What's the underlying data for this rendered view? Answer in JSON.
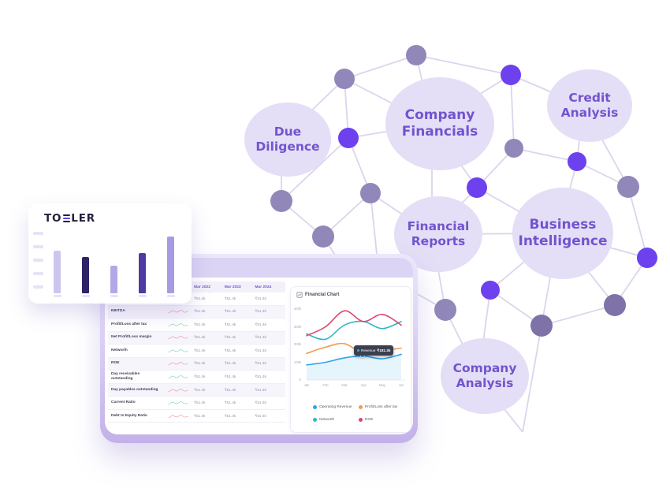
{
  "brand_card": {
    "logo_prefix": "TO",
    "logo_suffix": "LER"
  },
  "dashboard": {
    "table": {
      "columns": [
        "Mar 2022",
        "Mar 2023",
        "Mar 2024"
      ],
      "rows": [
        {
          "label": "Operating Revenue",
          "spark": "green",
          "values": [
            "₹51.4k",
            "₹51.4k",
            "₹51.4k"
          ]
        },
        {
          "label": "EBITDA",
          "spark": "red",
          "values": [
            "₹51.4k",
            "₹51.4k",
            "₹51.4k"
          ]
        },
        {
          "label": "Profit/Loss after tax",
          "spark": "green",
          "values": [
            "₹51.4k",
            "₹51.4k",
            "₹51.4k"
          ]
        },
        {
          "label": "Net Profit/Loss margin",
          "spark": "red",
          "values": [
            "₹51.4k",
            "₹51.4k",
            "₹51.4k"
          ]
        },
        {
          "label": "Networth",
          "spark": "green",
          "values": [
            "₹51.4k",
            "₹51.4k",
            "₹51.4k"
          ]
        },
        {
          "label": "ROE",
          "spark": "red",
          "values": [
            "₹51.4k",
            "₹51.4k",
            "₹51.4k"
          ]
        },
        {
          "label": "Day receivables outstanding",
          "spark": "green",
          "values": [
            "₹51.4k",
            "₹51.4k",
            "₹51.4k"
          ]
        },
        {
          "label": "Day payables outstanding",
          "spark": "red",
          "values": [
            "₹51.4k",
            "₹51.4k",
            "₹51.4k"
          ]
        },
        {
          "label": "Current Ratio",
          "spark": "green",
          "values": [
            "₹51.4k",
            "₹51.4k",
            "₹51.4k"
          ]
        },
        {
          "label": "Debt to Equity Ratio",
          "spark": "red",
          "values": [
            "₹51.4k",
            "₹51.4k",
            "₹51.4k"
          ]
        }
      ]
    },
    "chart_card": {
      "title": "Financial Chart",
      "y_ticks": [
        "400k",
        "300k",
        "200k",
        "100k",
        "0"
      ],
      "x_ticks": [
        "Jan",
        "Feb",
        "Mar",
        "Apr",
        "May",
        "Jun"
      ],
      "tooltip": {
        "label": "Revenue",
        "value": "₹181.3k"
      },
      "legend": [
        {
          "name": "Operating Revenue",
          "color": "#2ea3e8"
        },
        {
          "name": "Profit/Loss after tax",
          "color": "#f59a4d"
        },
        {
          "name": "Networth",
          "color": "#2fb7c5"
        },
        {
          "name": "ROE",
          "color": "#d9486e"
        }
      ]
    }
  },
  "network": {
    "labels": [
      {
        "text": "Due Diligence"
      },
      {
        "text": "Company Financials"
      },
      {
        "text": "Credit Analysis"
      },
      {
        "text": "Financial Reports"
      },
      {
        "text": "Business Intelligence"
      },
      {
        "text": "Company Analysis"
      }
    ],
    "colors": {
      "bubble_bg": "#e4def6",
      "bubble_text": "#7254cf",
      "node_violet": "#6d41ee",
      "node_muted": "#9187b9",
      "node_muted_dark": "#7e72a8",
      "edge": "#dbd5ec"
    }
  },
  "chart_data": [
    {
      "type": "line",
      "title": "Financial Chart",
      "x": [
        "Jan",
        "Feb",
        "Mar",
        "Apr",
        "May",
        "Jun"
      ],
      "ylim": [
        0,
        400
      ],
      "y_unit": "k",
      "legend_position": "bottom",
      "series": [
        {
          "name": "Operating Revenue",
          "color": "#2ea3e8",
          "area": true,
          "values": [
            85,
            100,
            125,
            135,
            120,
            145
          ]
        },
        {
          "name": "Profit/Loss after tax",
          "color": "#f59a4d",
          "area": false,
          "values": [
            150,
            185,
            205,
            150,
            165,
            180
          ]
        },
        {
          "name": "Networth",
          "color": "#2fb7c5",
          "area": false,
          "values": [
            260,
            230,
            310,
            330,
            290,
            330
          ]
        },
        {
          "name": "ROE",
          "color": "#d9486e",
          "area": false,
          "values": [
            250,
            300,
            390,
            330,
            370,
            310
          ]
        }
      ]
    },
    {
      "type": "bar",
      "title": "Brand card mini bar chart",
      "categories": [
        "",
        "",
        "",
        "",
        ""
      ],
      "values": [
        75,
        64,
        49,
        71,
        100
      ],
      "colors": [
        "#cdc5ef",
        "#2e2364",
        "#b3a7e8",
        "#4f3aa3",
        "#a79ae2"
      ]
    }
  ]
}
